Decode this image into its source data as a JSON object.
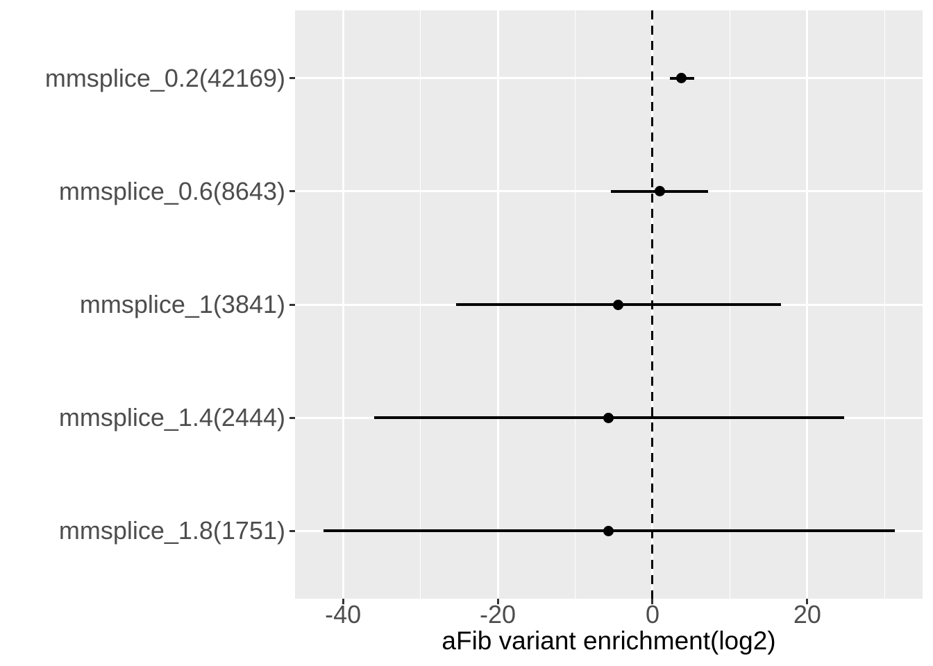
{
  "figure": {
    "kind": "forest-pointrange-plot",
    "background": "#ffffff"
  },
  "chart_data": {
    "type": "scatter",
    "subtype": "pointrange-forest",
    "title": "",
    "xlabel": "aFib variant enrichment(log2)",
    "ylabel": "",
    "categories": [
      "mmsplice_0.2(42169)",
      "mmsplice_0.6(8643)",
      "mmsplice_1(3841)",
      "mmsplice_1.4(2444)",
      "mmsplice_1.8(1751)"
    ],
    "counts": [
      42169,
      8643,
      3841,
      2444,
      1751
    ],
    "values": [
      3.7,
      0.9,
      -4.4,
      -5.7,
      -5.7
    ],
    "ci_low": [
      2.2,
      -5.4,
      -25.4,
      -36.0,
      -42.5
    ],
    "ci_high": [
      5.4,
      7.2,
      16.6,
      24.8,
      31.3
    ],
    "xlim": [
      -46.2,
      34.9
    ],
    "x_major_ticks": [
      -40,
      -20,
      0,
      20
    ],
    "x_tick_labels": [
      "-40",
      "-20",
      "0",
      "20"
    ],
    "x_minor_ticks": [
      -30,
      -10,
      10,
      30
    ],
    "reference_line_x": 0,
    "reference_line_style": "dashed",
    "grid": true,
    "legend": "none",
    "colors": {
      "panel_bg": "#EBEBEB",
      "gridline": "#FFFFFF",
      "point": "#000000",
      "range_line": "#000000",
      "reference_line": "#000000",
      "tick_mark": "#333333",
      "tick_text": "#4D4D4D",
      "axis_title_text": "#000000"
    }
  }
}
